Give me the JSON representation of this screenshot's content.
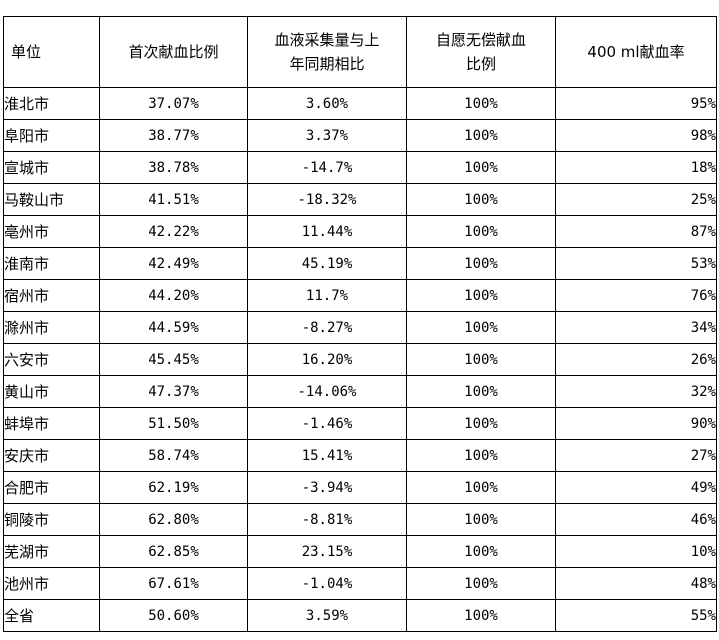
{
  "table": {
    "columns": [
      [
        "单位"
      ],
      [
        "首次献血比例"
      ],
      [
        "血液采集量与上",
        "年同期相比"
      ],
      [
        "自愿无偿献血",
        "比例"
      ],
      [
        "400 ml献血率"
      ]
    ],
    "rows": [
      [
        "淮北市",
        "37.07%",
        "3.60%",
        "100%",
        "95%"
      ],
      [
        "阜阳市",
        "38.77%",
        "3.37%",
        "100%",
        "98%"
      ],
      [
        "宣城市",
        "38.78%",
        "-14.7%",
        "100%",
        "18%"
      ],
      [
        "马鞍山市",
        "41.51%",
        "-18.32%",
        "100%",
        "25%"
      ],
      [
        "亳州市",
        "42.22%",
        "11.44%",
        "100%",
        "87%"
      ],
      [
        "淮南市",
        "42.49%",
        "45.19%",
        "100%",
        "53%"
      ],
      [
        "宿州市",
        "44.20%",
        "11.7%",
        "100%",
        "76%"
      ],
      [
        "滁州市",
        "44.59%",
        "-8.27%",
        "100%",
        "34%"
      ],
      [
        "六安市",
        "45.45%",
        "16.20%",
        "100%",
        "26%"
      ],
      [
        "黄山市",
        "47.37%",
        "-14.06%",
        "100%",
        "32%"
      ],
      [
        "蚌埠市",
        "51.50%",
        "-1.46%",
        "100%",
        "90%"
      ],
      [
        "安庆市",
        "58.74%",
        "15.41%",
        "100%",
        "27%"
      ],
      [
        "合肥市",
        "62.19%",
        "-3.94%",
        "100%",
        "49%"
      ],
      [
        "铜陵市",
        "62.80%",
        "-8.81%",
        "100%",
        "46%"
      ],
      [
        "芜湖市",
        "62.85%",
        "23.15%",
        "100%",
        "10%"
      ],
      [
        "池州市",
        "67.61%",
        "-1.04%",
        "100%",
        "48%"
      ],
      [
        "全省",
        "50.60%",
        "3.59%",
        "100%",
        "55%"
      ]
    ]
  }
}
